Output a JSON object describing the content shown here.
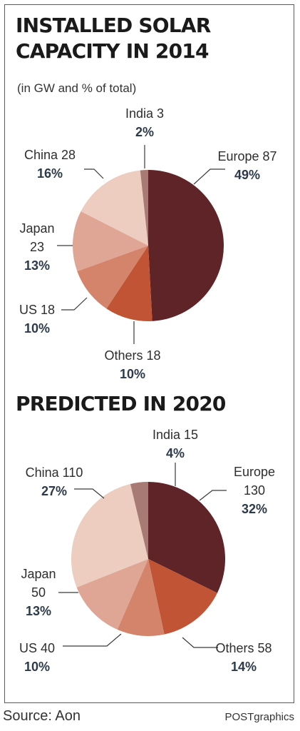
{
  "chart_data": [
    {
      "type": "pie",
      "title": "INSTALLED SOLAR CAPACITY IN 2014",
      "title_lines": [
        "INSTALLED SOLAR",
        "CAPACITY IN 2014"
      ],
      "subtitle": "(in GW and % of total)",
      "slices": [
        {
          "name": "Europe",
          "value": 87,
          "percent": 49,
          "color": "#5e2427"
        },
        {
          "name": "Others",
          "value": 18,
          "percent": 10,
          "color": "#c05435"
        },
        {
          "name": "US",
          "value": 18,
          "percent": 10,
          "color": "#d4846b"
        },
        {
          "name": "Japan",
          "value": 23,
          "percent": 13,
          "color": "#dfa595"
        },
        {
          "name": "China",
          "value": 28,
          "percent": 16,
          "color": "#eccdbf"
        },
        {
          "name": "India",
          "value": 3,
          "percent": 2,
          "color": "#a87a74"
        }
      ],
      "labels": [
        {
          "lines": [
            "India 3"
          ],
          "pct": "2%"
        },
        {
          "lines": [
            "Europe 87"
          ],
          "pct": "49%"
        },
        {
          "lines": [
            "China 28"
          ],
          "pct": "16%"
        },
        {
          "lines": [
            "Japan",
            "23"
          ],
          "pct": "13%"
        },
        {
          "lines": [
            "US 18"
          ],
          "pct": "10%"
        },
        {
          "lines": [
            "Others 18"
          ],
          "pct": "10%"
        }
      ]
    },
    {
      "type": "pie",
      "title": "PREDICTED IN 2020",
      "slices": [
        {
          "name": "Europe",
          "value": 130,
          "percent": 32,
          "color": "#5e2427"
        },
        {
          "name": "Others",
          "value": 58,
          "percent": 14,
          "color": "#c05435"
        },
        {
          "name": "US",
          "value": 40,
          "percent": 10,
          "color": "#d4846b"
        },
        {
          "name": "Japan",
          "value": 50,
          "percent": 13,
          "color": "#dfa595"
        },
        {
          "name": "China",
          "value": 110,
          "percent": 27,
          "color": "#eccdbf"
        },
        {
          "name": "India",
          "value": 15,
          "percent": 4,
          "color": "#a87a74"
        }
      ],
      "labels": [
        {
          "lines": [
            "India 15"
          ],
          "pct": "4%"
        },
        {
          "lines": [
            "Europe",
            "130"
          ],
          "pct": "32%"
        },
        {
          "lines": [
            "China 110"
          ],
          "pct": "27%"
        },
        {
          "lines": [
            "Japan",
            "50"
          ],
          "pct": "13%"
        },
        {
          "lines": [
            "US 40"
          ],
          "pct": "10%"
        },
        {
          "lines": [
            "Others 58"
          ],
          "pct": "14%"
        }
      ]
    }
  ],
  "footer": {
    "source": "Source: Aon",
    "credit": "POSTgraphics"
  }
}
